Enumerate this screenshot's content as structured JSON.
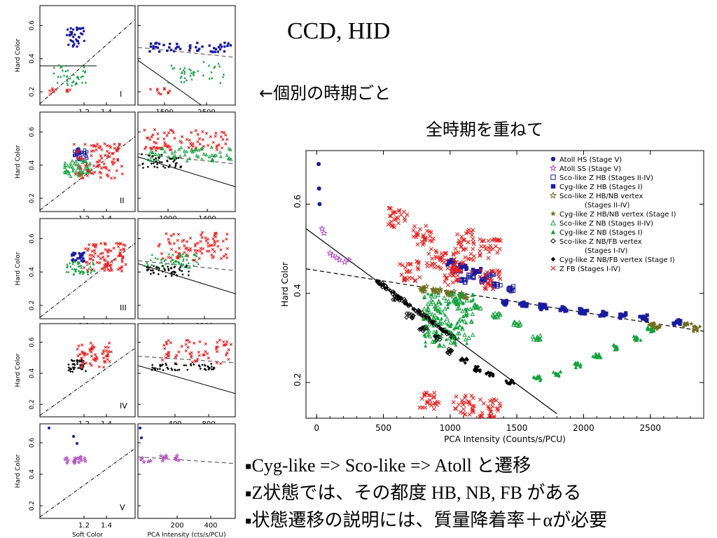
{
  "slide": {
    "title": "CCD, HID",
    "note_individual": "←個別の時期ごと",
    "note_all": "全時期を重ねて",
    "bullets": [
      {
        "marker": "▪",
        "text": "Cyg-like => Sco-like => Atoll と遷移"
      },
      {
        "marker": "▪",
        "text": "Z状態では、その都度 HB, NB, FB がある"
      },
      {
        "marker": "▪",
        "text": "状態遷移の説明には、質量降着率＋αが必要"
      }
    ]
  },
  "colors": {
    "atoll": "#1a1aa0",
    "sco_atoll_ss": "#b04fc0",
    "hb": "#1a1aa0",
    "hbnb": "#6e6e1e",
    "nb": "#12a03c",
    "nbfb": "#000000",
    "fb": "#e81f1f"
  },
  "chart_data": [
    {
      "type": "scatter",
      "panel": "main-hid",
      "xlabel": "PCA Intensity (Counts/s/PCU)",
      "ylabel": "Hard Color",
      "xlim": [
        -80,
        2900
      ],
      "ylim": [
        0.12,
        0.72
      ],
      "xticks": [
        0,
        500,
        1000,
        1500,
        2000,
        2500
      ],
      "yticks": [
        0.2,
        0.4,
        0.6
      ],
      "legend_position": "top-right",
      "legend": [
        {
          "label": "Atoll HS (Stage V)",
          "marker": "filled-circle",
          "color": "#1a1aa0"
        },
        {
          "label": "Atoll SS (Stage V)",
          "marker": "open-star",
          "color": "#b04fc0"
        },
        {
          "label": "Sco-like Z HB (Stages II-IV)",
          "marker": "open-square",
          "color": "#1a1aa0"
        },
        {
          "label": "Cyg-like Z HB (Stages I)",
          "marker": "filled-square",
          "color": "#1a1aa0"
        },
        {
          "label": "Sco-like Z HB/NB vertex",
          "label2": "(Stages II-IV)",
          "marker": "open-star",
          "color": "#6e6e1e"
        },
        {
          "label": "Cyg-like Z HB/NB vertex (Stage I)",
          "marker": "filled-star",
          "color": "#6e6e1e"
        },
        {
          "label": "Sco-like Z NB (Stages II-IV)",
          "marker": "open-triangle",
          "color": "#12a03c"
        },
        {
          "label": "Cyg-like Z NB (Stages I)",
          "marker": "filled-triangle",
          "color": "#12a03c"
        },
        {
          "label": "Sco-like Z NB/FB vertex",
          "label2": "(Stages I-IV)",
          "marker": "open-diamond",
          "color": "#000000"
        },
        {
          "label": "Cyg-like Z NB/FB vertex (Stage I)",
          "marker": "filled-diamond",
          "color": "#000000"
        },
        {
          "label": "Z FB (Stages I-IV)",
          "marker": "cross",
          "color": "#e81f1f"
        }
      ],
      "lines": [
        {
          "style": "solid",
          "points": [
            [
              -80,
              0.545
            ],
            [
              1800,
              0.13
            ]
          ]
        },
        {
          "style": "dashed",
          "points": [
            [
              -80,
              0.455
            ],
            [
              2900,
              0.315
            ]
          ]
        }
      ],
      "series": [
        {
          "name": "Atoll HS (Stage V)",
          "points": [
            [
              15,
              0.69
            ],
            [
              18,
              0.635
            ],
            [
              22,
              0.6
            ]
          ]
        },
        {
          "name": "Atoll SS (Stage V)",
          "points": [
            [
              40,
              0.545
            ],
            [
              55,
              0.535
            ],
            [
              100,
              0.49
            ],
            [
              150,
              0.48
            ],
            [
              170,
              0.475
            ],
            [
              210,
              0.47
            ],
            [
              240,
              0.475
            ],
            [
              120,
              0.485
            ]
          ]
        },
        {
          "name": "Sco-like Z HB (Stages II-IV)",
          "points": [
            [
              1050,
              0.455
            ],
            [
              1150,
              0.44
            ],
            [
              1250,
              0.43
            ],
            [
              1350,
              0.42
            ],
            [
              1450,
              0.41
            ],
            [
              1100,
              0.43
            ],
            [
              1300,
              0.44
            ]
          ]
        },
        {
          "name": "Cyg-like Z HB (Stages I)",
          "points": [
            [
              1000,
              0.47
            ],
            [
              1100,
              0.46
            ],
            [
              1200,
              0.45
            ],
            [
              1400,
              0.38
            ],
            [
              1550,
              0.375
            ],
            [
              1700,
              0.37
            ],
            [
              1850,
              0.365
            ],
            [
              2000,
              0.36
            ],
            [
              2150,
              0.355
            ],
            [
              2300,
              0.35
            ],
            [
              2450,
              0.345
            ],
            [
              2700,
              0.335
            ]
          ]
        },
        {
          "name": "Sco-like Z HB/NB vertex",
          "points": [
            [
              800,
              0.41
            ],
            [
              900,
              0.405
            ],
            [
              1000,
              0.4
            ],
            [
              1100,
              0.395
            ]
          ]
        },
        {
          "name": "Cyg-like Z HB/NB vertex (Stage I)",
          "points": [
            [
              2500,
              0.33
            ],
            [
              2550,
              0.325
            ],
            [
              2780,
              0.33
            ],
            [
              2850,
              0.32
            ]
          ]
        },
        {
          "name": "Sco-like Z NB (Stages II-IV)",
          "points": [
            [
              1050,
              0.38
            ],
            [
              1200,
              0.37
            ],
            [
              1350,
              0.35
            ],
            [
              1500,
              0.33
            ],
            [
              1650,
              0.3
            ]
          ]
        },
        {
          "name": "Cyg-like Z NB (Stages I)",
          "points": [
            [
              1650,
              0.21
            ],
            [
              1800,
              0.22
            ],
            [
              1950,
              0.24
            ],
            [
              2100,
              0.26
            ],
            [
              2250,
              0.28
            ],
            [
              2400,
              0.3
            ],
            [
              2500,
              0.32
            ]
          ]
        },
        {
          "name": "Sco-like Z NB/FB vertex",
          "points": [
            [
              600,
              0.39
            ],
            [
              700,
              0.35
            ],
            [
              800,
              0.32
            ],
            [
              900,
              0.3
            ],
            [
              1000,
              0.27
            ]
          ]
        },
        {
          "name": "Cyg-like Z NB/FB vertex (Stage I)",
          "points": [
            [
              1100,
              0.25
            ],
            [
              1200,
              0.23
            ],
            [
              1300,
              0.22
            ],
            [
              1450,
              0.2
            ]
          ]
        },
        {
          "name": "Z FB (Stages I-IV)",
          "points": [
            [
              600,
              0.57
            ],
            [
              800,
              0.53
            ],
            [
              1100,
              0.52
            ],
            [
              1300,
              0.5
            ],
            [
              700,
              0.45
            ],
            [
              1000,
              0.44
            ],
            [
              1300,
              0.43
            ],
            [
              900,
              0.48
            ],
            [
              1100,
              0.47
            ],
            [
              850,
              0.16
            ],
            [
              1100,
              0.15
            ],
            [
              1300,
              0.14
            ]
          ]
        }
      ]
    },
    {
      "type": "scatter",
      "panel": "I",
      "label": "I",
      "ylabel": "Hard Color",
      "ccd_xticks": [
        "1.2",
        "1.4"
      ],
      "hid_xticks": [
        "1500",
        "2500"
      ],
      "yticks": [
        "0.2",
        "0.4",
        "0.6"
      ]
    },
    {
      "type": "scatter",
      "panel": "II",
      "label": "II",
      "ylabel": "Hard Color",
      "ccd_xticks": [
        "1.2",
        "1.4"
      ],
      "hid_xticks": [
        "1000",
        "1400"
      ],
      "yticks": [
        "0.2",
        "0.4",
        "0.6"
      ]
    },
    {
      "type": "scatter",
      "panel": "III",
      "label": "III",
      "ylabel": "Hard Color",
      "ccd_xticks": [
        "1.2",
        "1.4"
      ],
      "hid_xticks": [
        "800",
        "1200"
      ],
      "yticks": [
        "0.2",
        "0.4",
        "0.6"
      ]
    },
    {
      "type": "scatter",
      "panel": "IV",
      "label": "IV",
      "ylabel": "Hard Color",
      "ccd_xticks": [
        "1.2",
        "1.4"
      ],
      "hid_xticks": [
        "400",
        "800"
      ],
      "yticks": [
        "0.2",
        "0.4",
        "0.6"
      ]
    },
    {
      "type": "scatter",
      "panel": "V",
      "label": "V",
      "ylabel": "Hard Color",
      "ccd_xticks": [
        "1.2",
        "1.4"
      ],
      "hid_xticks": [
        "200",
        "400"
      ],
      "yticks": [
        "0.2",
        "0.4",
        "0.6"
      ],
      "ccd_xlabel": "Soft Color",
      "hid_xlabel": "PCA Intensity (cts/s/PCU)"
    }
  ]
}
